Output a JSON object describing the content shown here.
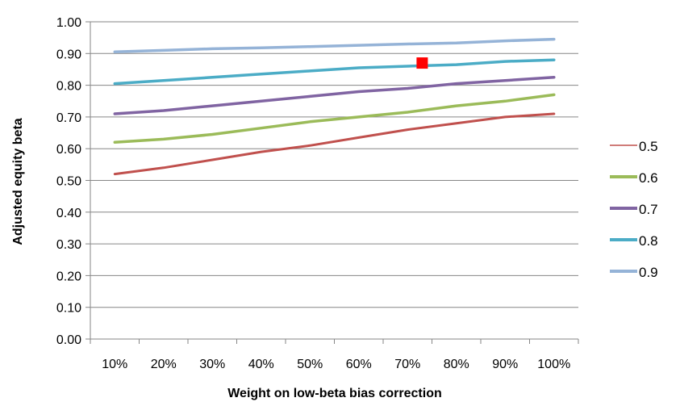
{
  "chart_data": {
    "type": "line",
    "title": "",
    "xlabel": "Weight on low-beta bias correction",
    "ylabel": "Adjusted equity beta",
    "categories": [
      "10%",
      "20%",
      "30%",
      "40%",
      "50%",
      "60%",
      "70%",
      "80%",
      "90%",
      "100%"
    ],
    "y_ticks": [
      "0.00",
      "0.10",
      "0.20",
      "0.30",
      "0.40",
      "0.50",
      "0.60",
      "0.70",
      "0.80",
      "0.90",
      "1.00"
    ],
    "ylim": [
      0,
      1.0
    ],
    "grid": true,
    "legend_position": "right",
    "series": [
      {
        "name": "0.5",
        "color": "#C0504D",
        "values": [
          0.52,
          0.54,
          0.565,
          0.59,
          0.61,
          0.635,
          0.66,
          0.68,
          0.7,
          0.71
        ]
      },
      {
        "name": "0.6",
        "color": "#9BBB59",
        "values": [
          0.62,
          0.63,
          0.645,
          0.665,
          0.685,
          0.7,
          0.715,
          0.735,
          0.75,
          0.77
        ]
      },
      {
        "name": "0.7",
        "color": "#8064A2",
        "values": [
          0.71,
          0.72,
          0.735,
          0.75,
          0.765,
          0.78,
          0.79,
          0.805,
          0.815,
          0.825
        ]
      },
      {
        "name": "0.8",
        "color": "#4BACC6",
        "values": [
          0.805,
          0.815,
          0.825,
          0.835,
          0.845,
          0.855,
          0.86,
          0.865,
          0.875,
          0.88
        ]
      },
      {
        "name": "0.9",
        "color": "#95B3D7",
        "values": [
          0.905,
          0.91,
          0.915,
          0.918,
          0.922,
          0.926,
          0.93,
          0.933,
          0.94,
          0.945
        ]
      }
    ],
    "marker": {
      "shape": "square",
      "color": "#FF0000",
      "x": "73%",
      "x_value": 7.3,
      "y": 0.87
    }
  }
}
